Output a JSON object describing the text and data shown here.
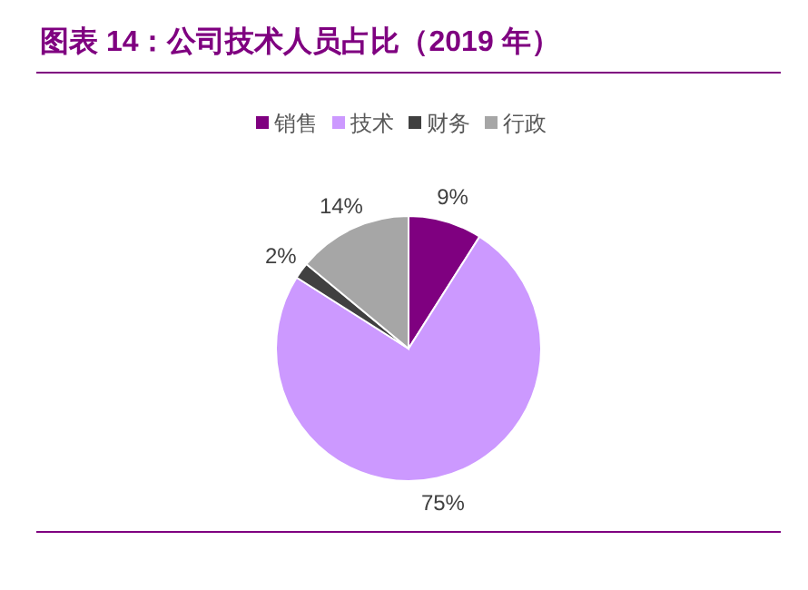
{
  "chart_data": {
    "type": "pie",
    "title": "图表 14：公司技术人员占比（2019 年）",
    "categories": [
      "销售",
      "技术",
      "财务",
      "行政"
    ],
    "values": [
      9,
      75,
      2,
      14
    ],
    "colors": [
      "#7f0080",
      "#cc99ff",
      "#404040",
      "#a6a6a6"
    ],
    "value_labels": [
      "9%",
      "75%",
      "2%",
      "14%"
    ],
    "legend": "top"
  }
}
